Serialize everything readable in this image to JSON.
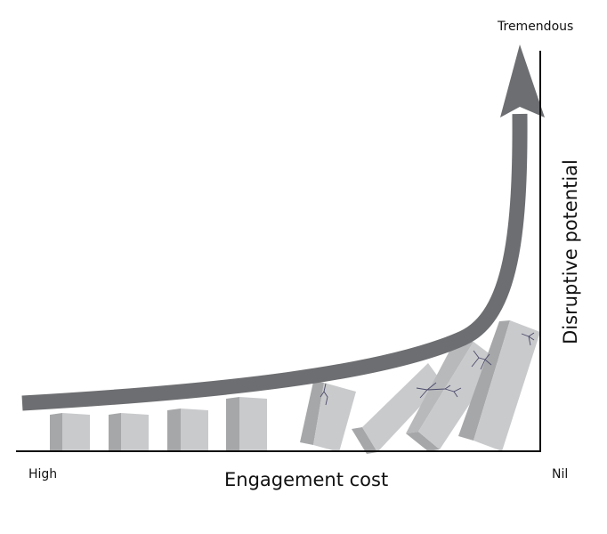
{
  "labels": {
    "y_top": "Tremendous",
    "x_left": "High",
    "x_axis": "Engagement cost",
    "x_right": "Nil",
    "y_axis": "Disruptive potential"
  },
  "colors": {
    "arrow": "#6d6e71",
    "block_front": "#c9cacc",
    "block_side": "#a6a7a9",
    "block_top": "#b8b9bb",
    "crack": "#4b4a6b",
    "axis": "#111111"
  }
}
